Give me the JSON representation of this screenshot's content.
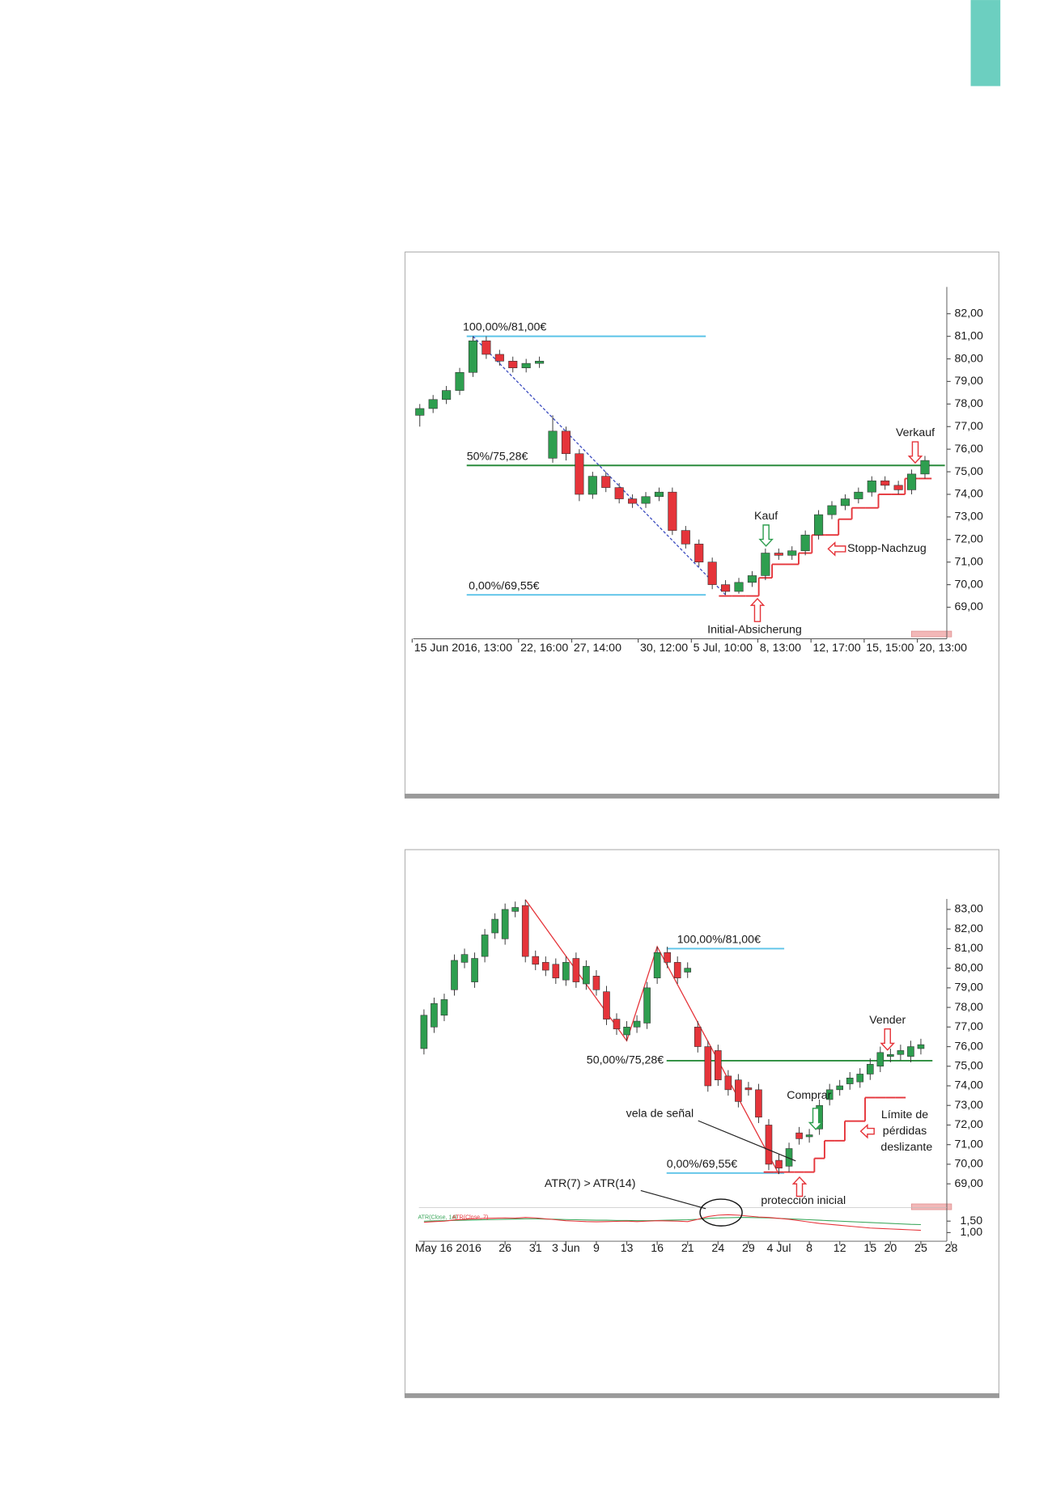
{
  "chart_data": [
    {
      "type": "candlestick",
      "categories": [
        "15 Jun 2016, 13:00",
        null,
        null,
        null,
        null,
        null,
        null,
        null,
        "22, 16:00",
        null,
        null,
        null,
        "27, 14:00",
        null,
        null,
        null,
        null,
        "30, 12:00",
        null,
        null,
        null,
        "5 Jul, 10:00",
        null,
        null,
        null,
        null,
        "8, 13:00",
        null,
        null,
        null,
        "12, 17:00",
        null,
        null,
        null,
        "15, 15:00",
        null,
        null,
        null,
        "20, 13:00"
      ],
      "open": [
        77.5,
        77.8,
        78.2,
        78.6,
        79.4,
        80.8,
        80.2,
        79.9,
        79.6,
        79.8,
        75.6,
        76.8,
        75.8,
        74.0,
        74.8,
        74.3,
        73.8,
        73.6,
        73.9,
        74.1,
        72.4,
        71.8,
        71.0,
        70.0,
        69.7,
        70.1,
        70.4,
        71.4,
        71.3,
        71.5,
        72.2,
        73.1,
        73.5,
        73.8,
        74.1,
        74.6,
        74.4,
        74.2,
        74.9
      ],
      "high": [
        78.0,
        78.4,
        78.8,
        79.6,
        81.0,
        81.0,
        80.4,
        80.1,
        80.0,
        80.1,
        77.5,
        77.0,
        76.0,
        75.0,
        75.0,
        74.5,
        74.0,
        74.1,
        74.3,
        74.3,
        72.6,
        72.0,
        71.2,
        70.2,
        70.3,
        70.6,
        71.6,
        71.6,
        71.7,
        72.4,
        73.3,
        73.7,
        74.0,
        74.3,
        74.8,
        74.8,
        74.6,
        75.1,
        75.7
      ],
      "low": [
        77.0,
        77.6,
        78.0,
        78.4,
        79.2,
        80.0,
        79.7,
        79.4,
        79.4,
        79.6,
        75.4,
        75.5,
        73.7,
        73.8,
        74.1,
        73.6,
        73.4,
        73.4,
        73.7,
        72.2,
        71.6,
        70.8,
        69.8,
        69.55,
        69.6,
        69.9,
        70.2,
        71.1,
        71.1,
        71.3,
        72.0,
        72.9,
        73.3,
        73.6,
        73.9,
        74.2,
        74.0,
        74.0,
        74.7
      ],
      "close": [
        77.8,
        78.2,
        78.6,
        79.4,
        80.8,
        80.2,
        79.9,
        79.6,
        79.8,
        79.9,
        76.8,
        75.8,
        74.0,
        74.8,
        74.3,
        73.8,
        73.6,
        73.9,
        74.1,
        72.4,
        71.8,
        71.0,
        70.0,
        69.7,
        70.1,
        70.4,
        71.4,
        71.3,
        71.5,
        72.2,
        73.1,
        73.5,
        73.8,
        74.1,
        74.6,
        74.4,
        74.2,
        74.9,
        75.5
      ],
      "up_color": "#2e9e4f",
      "down_color": "#e5343a",
      "ylim": [
        67.7,
        83.2
      ],
      "yticks": [
        {
          "value": 69,
          "label": "69,00"
        },
        {
          "value": 70,
          "label": "70,00"
        },
        {
          "value": 71,
          "label": "71,00"
        },
        {
          "value": 72,
          "label": "72,00"
        },
        {
          "value": 73,
          "label": "73,00"
        },
        {
          "value": 74,
          "label": "74,00"
        },
        {
          "value": 75,
          "label": "75,00"
        },
        {
          "value": 76,
          "label": "76,00"
        },
        {
          "value": 77,
          "label": "77,00"
        },
        {
          "value": 78,
          "label": "78,00"
        },
        {
          "value": 79,
          "label": "79,00"
        },
        {
          "value": 80,
          "label": "80,00"
        },
        {
          "value": 81,
          "label": "81,00"
        },
        {
          "value": 82,
          "label": "82,00"
        }
      ],
      "levels": [
        {
          "value": 81,
          "label": "100,00%/81,00€",
          "color": "#5cc3e8"
        },
        {
          "value": 75.28,
          "label": "50%/75,28€",
          "color": "#2a8c3c"
        },
        {
          "value": 69.55,
          "label": "0,00%/69,55€",
          "color": "#5cc3e8"
        }
      ],
      "stop": {
        "color": "#e5343a",
        "values": [
          null,
          null,
          null,
          null,
          null,
          null,
          null,
          null,
          null,
          null,
          null,
          null,
          null,
          null,
          null,
          null,
          null,
          null,
          null,
          null,
          null,
          null,
          null,
          69.5,
          69.5,
          69.5,
          70.3,
          70.9,
          70.9,
          71.4,
          72.2,
          72.2,
          72.9,
          73.4,
          73.4,
          74.0,
          74.0,
          74.7,
          74.7
        ]
      },
      "annotations": [
        "Verkauf",
        "Kauf",
        "Stopp-Nachzug",
        "Initial-Absicherung"
      ]
    },
    {
      "type": "candlestick",
      "categories": [
        "May 16 2016",
        null,
        null,
        null,
        null,
        null,
        null,
        null,
        "26",
        null,
        null,
        "31",
        null,
        null,
        "3 Jun",
        null,
        null,
        "9",
        null,
        null,
        "13",
        null,
        null,
        "16",
        null,
        null,
        "21",
        null,
        null,
        "24",
        null,
        null,
        "29",
        null,
        null,
        "4 Jul",
        null,
        null,
        "8",
        null,
        null,
        "12",
        null,
        null,
        "15",
        null,
        "20",
        null,
        null,
        "25",
        null,
        null,
        "28"
      ],
      "open": [
        75.9,
        77.0,
        77.6,
        78.9,
        80.3,
        79.3,
        80.6,
        81.8,
        81.5,
        82.9,
        83.2,
        80.6,
        80.3,
        80.2,
        79.4,
        80.5,
        79.2,
        79.6,
        78.8,
        77.4,
        76.6,
        77.0,
        77.2,
        79.5,
        80.8,
        80.3,
        79.8,
        77.0,
        76.0,
        75.8,
        74.5,
        74.3,
        73.9,
        73.8,
        72.0,
        70.2,
        69.9,
        71.6,
        71.4,
        71.8,
        73.3,
        73.8,
        74.1,
        74.2,
        74.6,
        75.0,
        75.5,
        75.6,
        75.5,
        75.9,
        null,
        null,
        null
      ],
      "high": [
        77.9,
        78.5,
        78.7,
        80.7,
        81.0,
        80.8,
        82.0,
        82.8,
        83.3,
        83.4,
        83.5,
        80.9,
        80.6,
        80.5,
        80.6,
        80.8,
        80.4,
        79.9,
        79.1,
        77.7,
        77.3,
        77.6,
        79.3,
        81.1,
        81.1,
        80.6,
        80.3,
        77.3,
        76.3,
        76.1,
        74.8,
        74.6,
        74.2,
        74.1,
        72.3,
        70.5,
        71.1,
        71.9,
        71.8,
        73.3,
        74.1,
        74.3,
        74.7,
        74.9,
        75.4,
        76.0,
        75.9,
        76.1,
        76.3,
        76.4,
        null,
        null,
        null
      ],
      "low": [
        75.6,
        76.7,
        77.3,
        78.6,
        80.0,
        79.0,
        80.3,
        81.5,
        81.2,
        82.6,
        80.3,
        79.9,
        79.6,
        79.2,
        79.1,
        79.0,
        78.9,
        78.6,
        77.1,
        76.6,
        76.3,
        76.7,
        76.9,
        79.2,
        80.0,
        79.2,
        79.5,
        75.7,
        73.7,
        74.0,
        73.5,
        72.9,
        73.5,
        72.1,
        69.7,
        69.5,
        69.6,
        71.0,
        71.1,
        71.5,
        73.0,
        73.5,
        73.8,
        73.9,
        74.3,
        74.7,
        75.2,
        75.3,
        75.2,
        75.6,
        null,
        null,
        null
      ],
      "close": [
        77.6,
        78.2,
        78.4,
        80.4,
        80.7,
        80.5,
        81.7,
        82.5,
        83.0,
        83.1,
        80.6,
        80.2,
        79.9,
        79.5,
        80.3,
        79.3,
        80.1,
        78.9,
        77.4,
        76.9,
        77.0,
        77.3,
        79.0,
        80.8,
        80.3,
        79.5,
        80.0,
        76.0,
        74.0,
        74.3,
        73.8,
        73.2,
        73.8,
        72.4,
        70.0,
        69.8,
        70.8,
        71.3,
        71.5,
        73.0,
        73.8,
        74.0,
        74.4,
        74.6,
        75.1,
        75.7,
        75.6,
        75.8,
        76.0,
        76.1,
        null,
        null,
        null
      ],
      "up_color": "#2e9e4f",
      "down_color": "#e5343a",
      "ylim": [
        68.2,
        83.5
      ],
      "yticks": [
        {
          "value": 69,
          "label": "69,00"
        },
        {
          "value": 70,
          "label": "70,00"
        },
        {
          "value": 71,
          "label": "71,00"
        },
        {
          "value": 72,
          "label": "72,00"
        },
        {
          "value": 73,
          "label": "73,00"
        },
        {
          "value": 74,
          "label": "74,00"
        },
        {
          "value": 75,
          "label": "75,00"
        },
        {
          "value": 76,
          "label": "76,00"
        },
        {
          "value": 77,
          "label": "77,00"
        },
        {
          "value": 78,
          "label": "78,00"
        },
        {
          "value": 79,
          "label": "79,00"
        },
        {
          "value": 80,
          "label": "80,00"
        },
        {
          "value": 81,
          "label": "81,00"
        },
        {
          "value": 82,
          "label": "82,00"
        },
        {
          "value": 83,
          "label": "83,00"
        }
      ],
      "levels": [
        {
          "value": 81,
          "label": "100,00%/81,00€",
          "color": "#5cc3e8"
        },
        {
          "value": 75.28,
          "label": "50,00%/75,28€",
          "color": "#2a8c3c"
        },
        {
          "value": 69.55,
          "label": "0,00%/69,55€",
          "color": "#5cc3e8"
        }
      ],
      "stop": {
        "color": "#e5343a",
        "values": [
          null,
          null,
          null,
          null,
          null,
          null,
          null,
          null,
          null,
          null,
          null,
          null,
          null,
          null,
          null,
          null,
          null,
          null,
          null,
          null,
          null,
          null,
          null,
          null,
          null,
          null,
          null,
          null,
          null,
          null,
          null,
          null,
          null,
          null,
          69.6,
          69.6,
          69.6,
          69.6,
          69.6,
          70.3,
          71.2,
          71.2,
          72.2,
          72.2,
          73.4,
          73.4,
          73.4,
          73.4,
          null,
          null,
          null,
          null,
          null
        ]
      },
      "annotations": [
        "Vender",
        "Comprar",
        "Límite de",
        "pérdidas",
        "deslizante",
        "vela de señal",
        "ATR(7) > ATR(14)",
        "protección inicial"
      ],
      "indicator": {
        "ylim": [
          0.75,
          2.0
        ],
        "yticks": [
          {
            "value": 1.5,
            "label": "1,50"
          },
          {
            "value": 1,
            "label": "1,00"
          }
        ],
        "series": [
          {
            "name": "ATR(Close, 14)",
            "color": "#3aa65a",
            "values": [
              1.5,
              1.51,
              1.52,
              1.53,
              1.54,
              1.55,
              1.56,
              1.57,
              1.58,
              1.59,
              1.6,
              1.6,
              1.59,
              1.58,
              1.57,
              1.56,
              1.55,
              1.54,
              1.54,
              1.53,
              1.53,
              1.52,
              1.52,
              1.53,
              1.54,
              1.55,
              1.56,
              1.58,
              1.62,
              1.64,
              1.65,
              1.66,
              1.66,
              1.65,
              1.64,
              1.62,
              1.6,
              1.58,
              1.56,
              1.54,
              1.52,
              1.5,
              1.48,
              1.46,
              1.44,
              1.42,
              1.4,
              1.38,
              1.36,
              1.35,
              null,
              null,
              null
            ]
          },
          {
            "name": "ATR(Close, 7)",
            "color": "#e5343a",
            "values": [
              1.45,
              1.48,
              1.5,
              1.55,
              1.58,
              1.6,
              1.62,
              1.63,
              1.64,
              1.63,
              1.66,
              1.64,
              1.6,
              1.56,
              1.52,
              1.5,
              1.48,
              1.47,
              1.48,
              1.49,
              1.5,
              1.48,
              1.5,
              1.52,
              1.51,
              1.5,
              1.48,
              1.58,
              1.7,
              1.76,
              1.78,
              1.76,
              1.72,
              1.68,
              1.66,
              1.62,
              1.58,
              1.52,
              1.46,
              1.4,
              1.36,
              1.32,
              1.28,
              1.24,
              1.2,
              1.18,
              1.16,
              1.14,
              1.12,
              1.1,
              null,
              null,
              null
            ]
          }
        ]
      }
    }
  ]
}
